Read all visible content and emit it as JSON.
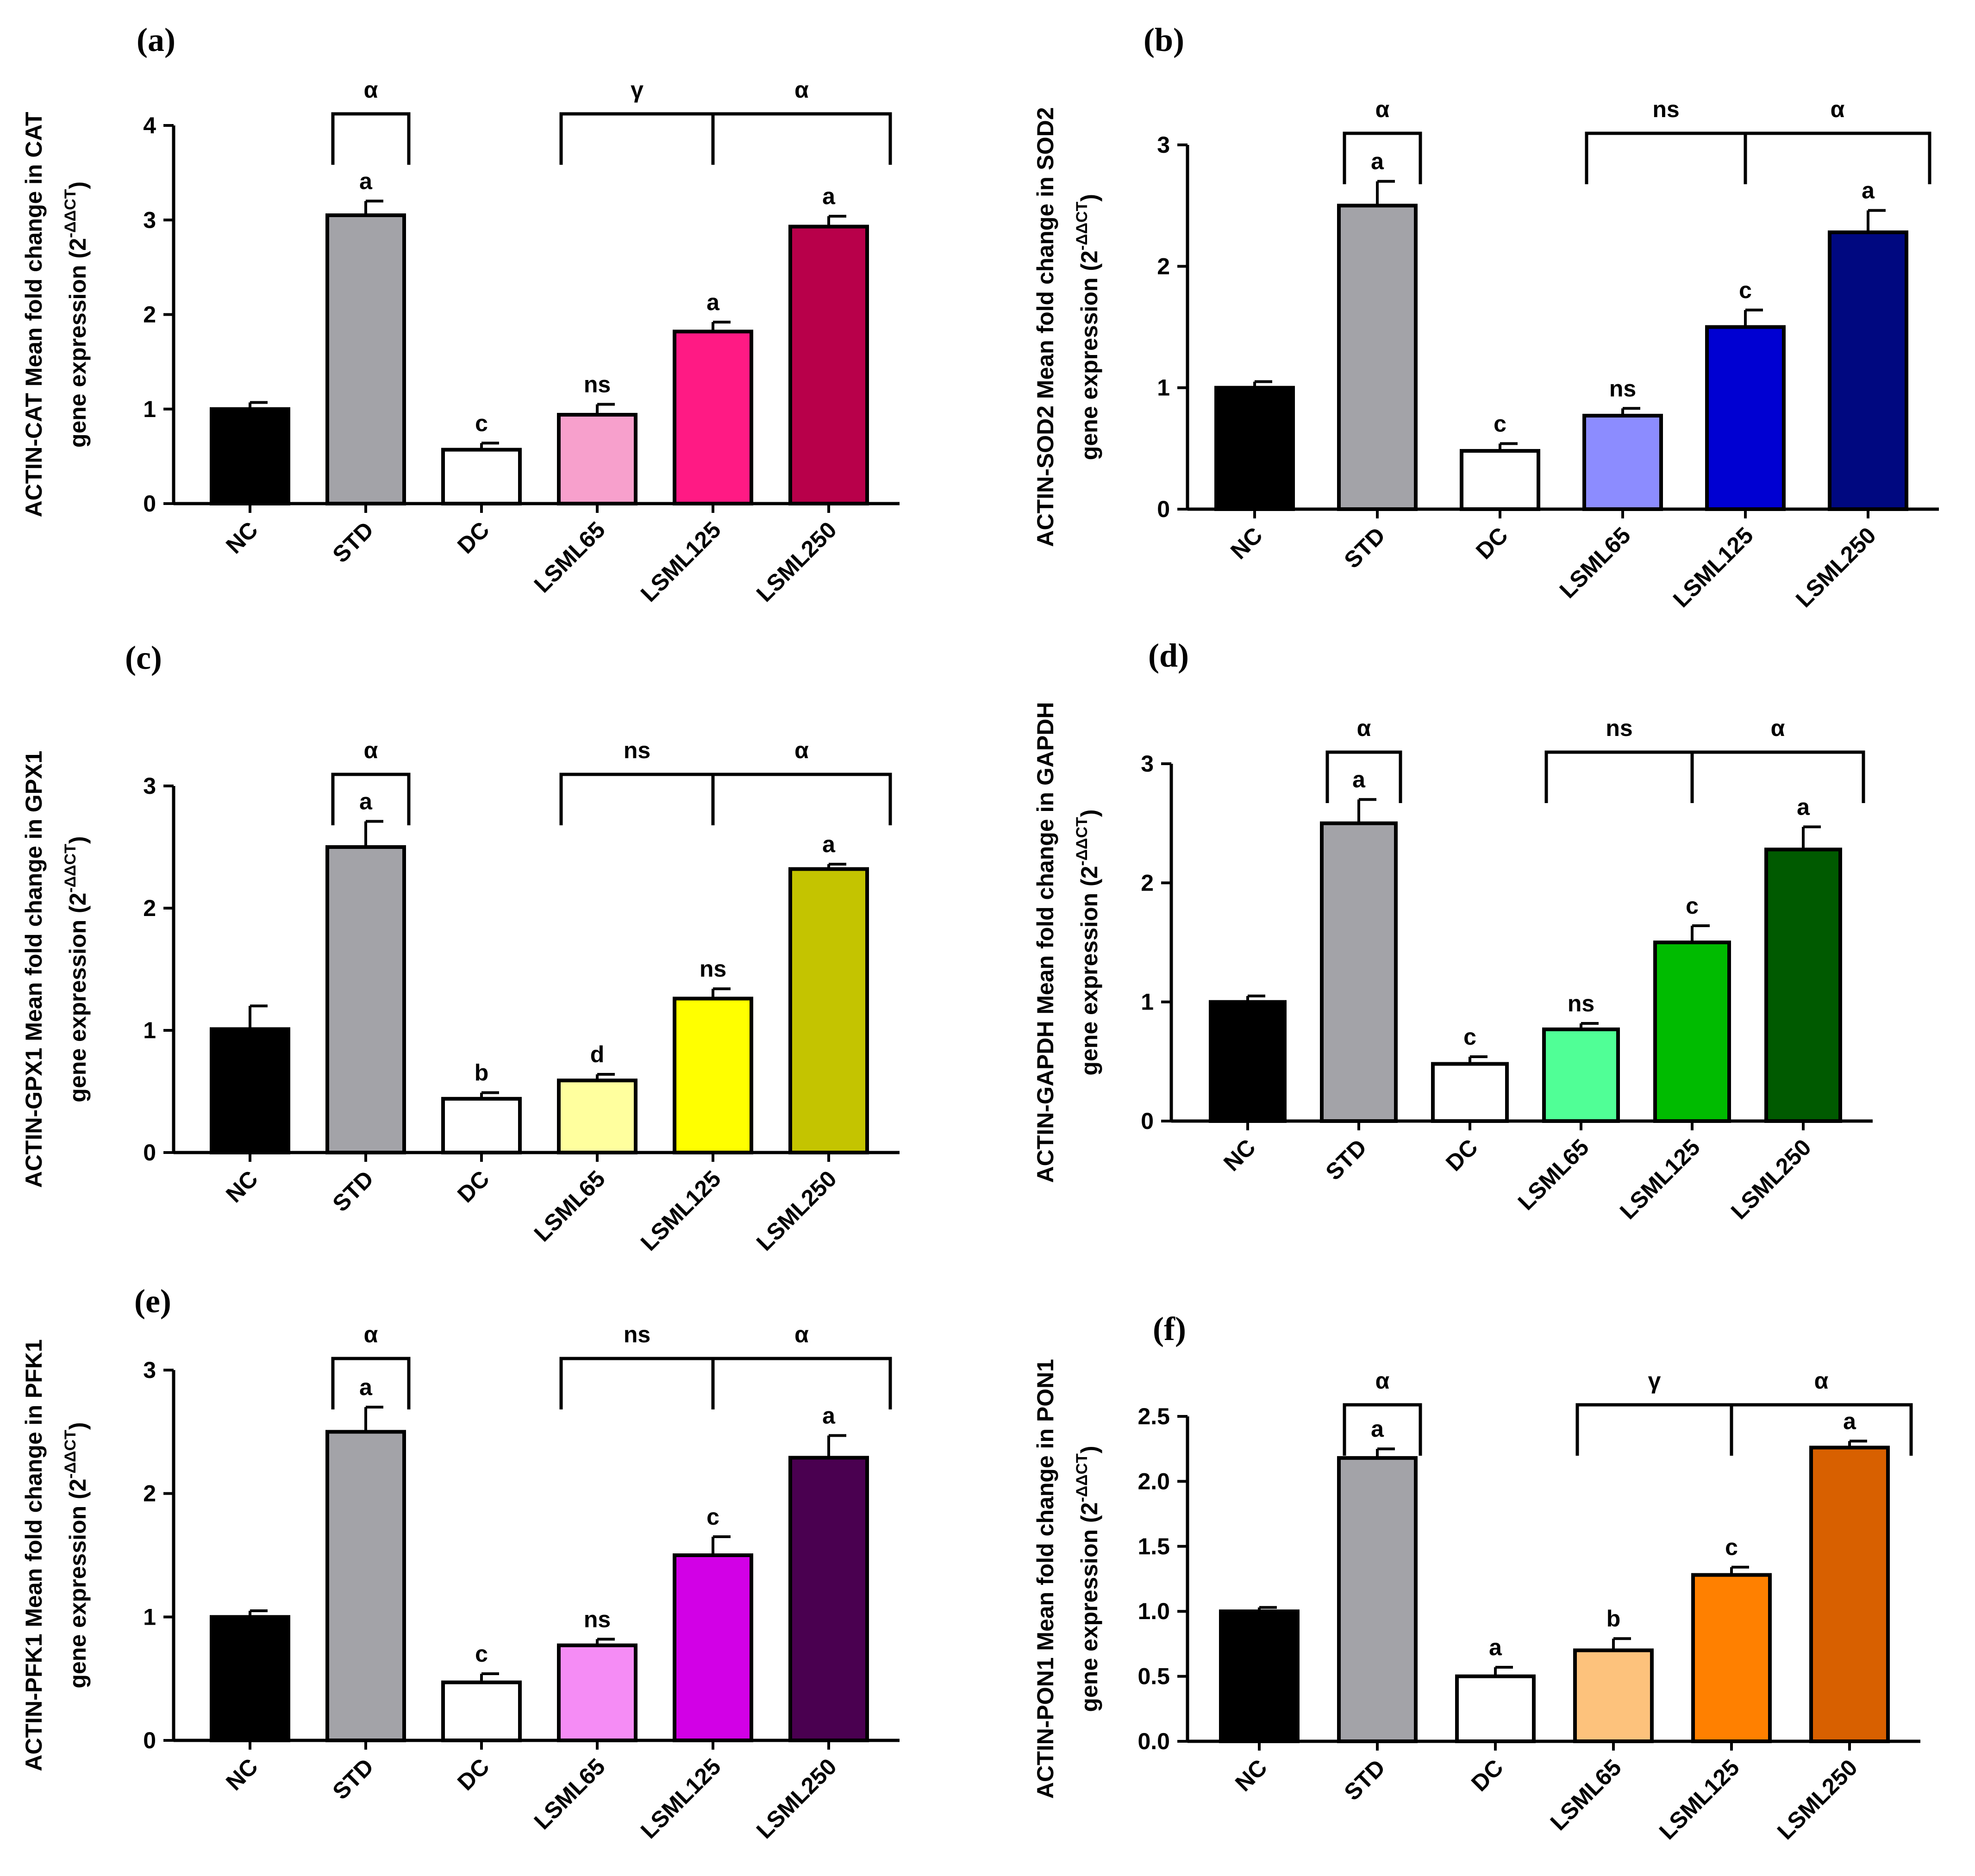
{
  "chart_data": [
    {
      "type": "bar",
      "panel_label": "(a)",
      "ylabel_line1": "ACTIN-CAT Mean fold change in CAT",
      "ylabel_line2": "gene expression (2",
      "ylabel_sup": "-ΔΔCT",
      "ylabel_close": ")",
      "categories": [
        "NC",
        "STD",
        "DC",
        "LSML65",
        "LSML125",
        "LSML250"
      ],
      "values": [
        1.0,
        3.05,
        0.57,
        0.94,
        1.82,
        2.93
      ],
      "errors": [
        0.07,
        0.15,
        0.07,
        0.11,
        0.1,
        0.11
      ],
      "colors": [
        "#000000",
        "#a3a3a8",
        "#ffffff",
        "#f7a0cc",
        "#ff1a84",
        "#b8004a"
      ],
      "sig_letters": [
        "",
        "a",
        "c",
        "ns",
        "a",
        "a"
      ],
      "ylim": [
        0,
        4
      ],
      "yticks": [
        "0",
        "1",
        "2",
        "3",
        "4"
      ],
      "brackets": [
        {
          "from": 1,
          "to": 1,
          "label": "α"
        },
        {
          "from": 3,
          "to": 4,
          "label": "γ"
        },
        {
          "from": 4,
          "to": 5,
          "label": "α"
        }
      ]
    },
    {
      "type": "bar",
      "panel_label": "(b)",
      "ylabel_line1": "ACTIN-SOD2 Mean fold change in SOD2",
      "ylabel_line2": "gene expression (2",
      "ylabel_sup": "-ΔΔCT",
      "ylabel_close": ")",
      "categories": [
        "NC",
        "STD",
        "DC",
        "LSML65",
        "LSML125",
        "LSML250"
      ],
      "values": [
        1.0,
        2.5,
        0.48,
        0.77,
        1.5,
        2.28
      ],
      "errors": [
        0.05,
        0.2,
        0.06,
        0.06,
        0.14,
        0.18
      ],
      "colors": [
        "#000000",
        "#a3a3a8",
        "#ffffff",
        "#8c8cff",
        "#0000d2",
        "#000880"
      ],
      "sig_letters": [
        "",
        "a",
        "c",
        "ns",
        "c",
        "a"
      ],
      "ylim": [
        0,
        3
      ],
      "yticks": [
        "0",
        "1",
        "2",
        "3"
      ],
      "brackets": [
        {
          "from": 1,
          "to": 1,
          "label": "α"
        },
        {
          "from": 3,
          "to": 4,
          "label": "ns"
        },
        {
          "from": 4,
          "to": 5,
          "label": "α"
        }
      ]
    },
    {
      "type": "bar",
      "panel_label": "(c)",
      "ylabel_line1": "ACTIN-GPX1 Mean fold change in GPX1",
      "ylabel_line2": "gene expression (2",
      "ylabel_sup": "-ΔΔCT",
      "ylabel_close": ")",
      "categories": [
        "NC",
        "STD",
        "DC",
        "LSML65",
        "LSML125",
        "LSML250"
      ],
      "values": [
        1.01,
        2.5,
        0.44,
        0.59,
        1.26,
        2.32
      ],
      "errors": [
        0.19,
        0.21,
        0.05,
        0.05,
        0.08,
        0.04
      ],
      "colors": [
        "#000000",
        "#a3a3a8",
        "#ffffff",
        "#ffff9e",
        "#ffff00",
        "#c4c400"
      ],
      "sig_letters": [
        "",
        "a",
        "b",
        "d",
        "ns",
        "a"
      ],
      "ylim": [
        0,
        3
      ],
      "yticks": [
        "0",
        "1",
        "2",
        "3"
      ],
      "brackets": [
        {
          "from": 1,
          "to": 1,
          "label": "α"
        },
        {
          "from": 3,
          "to": 4,
          "label": "ns"
        },
        {
          "from": 4,
          "to": 5,
          "label": "α"
        }
      ]
    },
    {
      "type": "bar",
      "panel_label": "(d)",
      "ylabel_line1": "ACTIN-GAPDH Mean fold change in GAPDH",
      "ylabel_line2": "gene expression (2",
      "ylabel_sup": "-ΔΔCT",
      "ylabel_close": ")",
      "categories": [
        "NC",
        "STD",
        "DC",
        "LSML65",
        "LSML125",
        "LSML250"
      ],
      "values": [
        1.0,
        2.5,
        0.48,
        0.77,
        1.5,
        2.28
      ],
      "errors": [
        0.05,
        0.2,
        0.06,
        0.05,
        0.14,
        0.19
      ],
      "colors": [
        "#000000",
        "#a3a3a8",
        "#ffffff",
        "#50ff96",
        "#00bb00",
        "#005a00"
      ],
      "sig_letters": [
        "",
        "a",
        "c",
        "ns",
        "c",
        "a"
      ],
      "ylim": [
        0,
        3
      ],
      "yticks": [
        "0",
        "1",
        "2",
        "3"
      ],
      "brackets": [
        {
          "from": 1,
          "to": 1,
          "label": "α"
        },
        {
          "from": 3,
          "to": 4,
          "label": "ns"
        },
        {
          "from": 4,
          "to": 5,
          "label": "α"
        }
      ]
    },
    {
      "type": "bar",
      "panel_label": "(e)",
      "ylabel_line1": "ACTIN-PFK1 Mean fold change in PFK1",
      "ylabel_line2": "gene expression (2",
      "ylabel_sup": "-ΔΔCT",
      "ylabel_close": ")",
      "categories": [
        "NC",
        "STD",
        "DC",
        "LSML65",
        "LSML125",
        "LSML250"
      ],
      "values": [
        1.0,
        2.5,
        0.47,
        0.77,
        1.5,
        2.29
      ],
      "errors": [
        0.05,
        0.2,
        0.07,
        0.05,
        0.15,
        0.18
      ],
      "colors": [
        "#000000",
        "#a3a3a8",
        "#ffffff",
        "#f58cf5",
        "#d200e6",
        "#4a0050"
      ],
      "sig_letters": [
        "",
        "a",
        "c",
        "ns",
        "c",
        "a"
      ],
      "ylim": [
        0,
        3
      ],
      "yticks": [
        "0",
        "1",
        "2",
        "3"
      ],
      "brackets": [
        {
          "from": 1,
          "to": 1,
          "label": "α"
        },
        {
          "from": 3,
          "to": 4,
          "label": "ns"
        },
        {
          "from": 4,
          "to": 5,
          "label": "α"
        }
      ]
    },
    {
      "type": "bar",
      "panel_label": "(f)",
      "ylabel_line1": "ACTIN-PON1 Mean fold change in PON1",
      "ylabel_line2": "gene expression (2",
      "ylabel_sup": "-ΔΔCT",
      "ylabel_close": ")",
      "categories": [
        "NC",
        "STD",
        "DC",
        "LSML65",
        "LSML125",
        "LSML250"
      ],
      "values": [
        1.0,
        2.18,
        0.5,
        0.7,
        1.28,
        2.26
      ],
      "errors": [
        0.03,
        0.07,
        0.07,
        0.09,
        0.06,
        0.05
      ],
      "colors": [
        "#000000",
        "#a3a3a8",
        "#ffffff",
        "#fdc27c",
        "#ff8000",
        "#d86000"
      ],
      "sig_letters": [
        "",
        "a",
        "a",
        "b",
        "c",
        "a"
      ],
      "ylim": [
        0,
        2.5
      ],
      "yticks": [
        "0.0",
        "0.5",
        "1.0",
        "1.5",
        "2.0",
        "2.5"
      ],
      "brackets": [
        {
          "from": 1,
          "to": 1,
          "label": "α"
        },
        {
          "from": 3,
          "to": 4,
          "label": "γ"
        },
        {
          "from": 4,
          "to": 5,
          "label": "α"
        }
      ]
    }
  ]
}
